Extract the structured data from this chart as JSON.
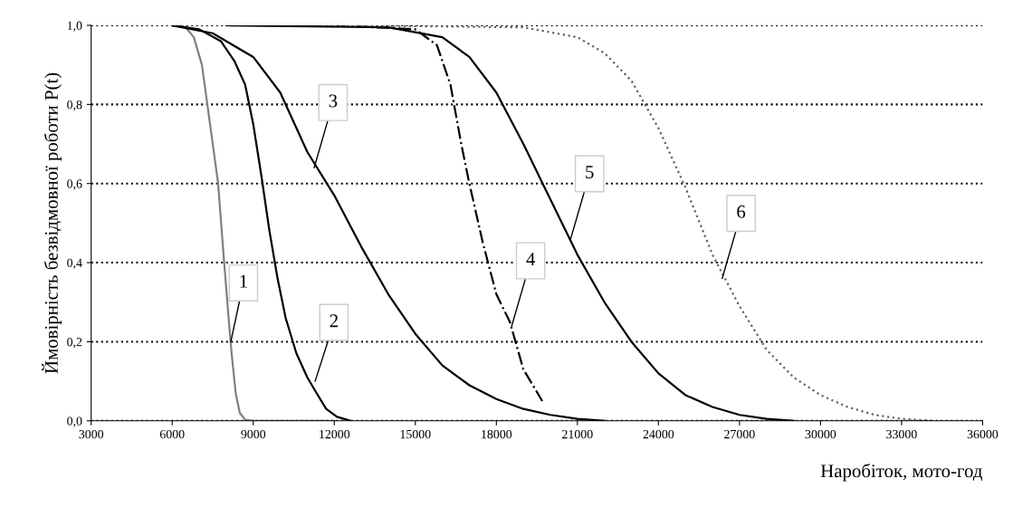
{
  "chart_data": {
    "type": "line",
    "xlabel": "Наробіток, мото-год",
    "ylabel": "Ймовірність безвідмовної роботи P(t)",
    "xlim": [
      3000,
      36000
    ],
    "ylim": [
      0,
      1
    ],
    "xticks": [
      3000,
      6000,
      9000,
      12000,
      15000,
      18000,
      21000,
      24000,
      27000,
      30000,
      33000,
      36000
    ],
    "yticks": [
      {
        "value": 0,
        "label": "0,0"
      },
      {
        "value": 0.2,
        "label": "0,2"
      },
      {
        "value": 0.4,
        "label": "0,4"
      },
      {
        "value": 0.6,
        "label": "0,6"
      },
      {
        "value": 0.8,
        "label": "0,8"
      },
      {
        "value": 1,
        "label": "1,0"
      }
    ],
    "grid": "y",
    "legend": false,
    "series": [
      {
        "color": "#808080",
        "line_style": "solid",
        "x": [
          6000,
          6500,
          6800,
          7100,
          7400,
          7700,
          7900,
          8100,
          8200,
          8350,
          8500,
          8700,
          9000,
          12000
        ],
        "values": [
          1,
          0.995,
          0.97,
          0.9,
          0.75,
          0.6,
          0.42,
          0.25,
          0.17,
          0.07,
          0.02,
          0.003,
          0,
          0
        ]
      },
      {
        "color": "#000000",
        "line_style": "solid",
        "x": [
          6000,
          7000,
          7800,
          8300,
          8700,
          9000,
          9300,
          9600,
          9900,
          10200,
          10600,
          11000,
          11300,
          11700,
          12100,
          12600
        ],
        "values": [
          1,
          0.99,
          0.96,
          0.91,
          0.85,
          0.75,
          0.62,
          0.48,
          0.36,
          0.26,
          0.17,
          0.11,
          0.075,
          0.03,
          0.01,
          0
        ]
      },
      {
        "color": "#000000",
        "line_style": "solid",
        "x": [
          6000,
          7500,
          9000,
          10000,
          11000,
          12000,
          13000,
          14000,
          15000,
          16000,
          17000,
          18000,
          19000,
          20000,
          21000,
          22000
        ],
        "values": [
          1,
          0.98,
          0.92,
          0.83,
          0.68,
          0.57,
          0.44,
          0.32,
          0.22,
          0.14,
          0.09,
          0.055,
          0.03,
          0.015,
          0.005,
          0
        ]
      },
      {
        "color": "#000000",
        "line_style": "dashed",
        "x": [
          12000,
          15000,
          15800,
          16300,
          16700,
          17000,
          17500,
          18000,
          18500,
          19000,
          19700
        ],
        "values": [
          1,
          0.99,
          0.95,
          0.85,
          0.7,
          0.6,
          0.45,
          0.32,
          0.25,
          0.13,
          0.05
        ]
      },
      {
        "color": "#000000",
        "line_style": "solid",
        "x": [
          8000,
          14000,
          16000,
          17000,
          18000,
          19000,
          20000,
          21000,
          22000,
          23000,
          24000,
          25000,
          26000,
          27000,
          28000,
          29000
        ],
        "values": [
          1,
          0.995,
          0.97,
          0.92,
          0.83,
          0.7,
          0.56,
          0.42,
          0.3,
          0.2,
          0.12,
          0.065,
          0.035,
          0.015,
          0.005,
          0
        ]
      },
      {
        "color": "#606060",
        "line_style": "dotted",
        "x": [
          12000,
          19000,
          21000,
          22000,
          23000,
          24000,
          25000,
          26000,
          27000,
          28000,
          29000,
          30000,
          31000,
          32000,
          33000,
          34200
        ],
        "values": [
          1,
          0.995,
          0.97,
          0.93,
          0.86,
          0.74,
          0.59,
          0.42,
          0.29,
          0.18,
          0.11,
          0.065,
          0.035,
          0.015,
          0.005,
          0
        ]
      }
    ],
    "annotations": [
      {
        "text": "1",
        "x": 8170,
        "y": 0.2
      },
      {
        "text": "2",
        "x": 11290,
        "y": 0.1
      },
      {
        "text": "3",
        "x": 11255,
        "y": 0.64
      },
      {
        "text": "4",
        "x": 18570,
        "y": 0.24
      },
      {
        "text": "5",
        "x": 20750,
        "y": 0.46
      },
      {
        "text": "6",
        "x": 26360,
        "y": 0.36
      }
    ]
  }
}
